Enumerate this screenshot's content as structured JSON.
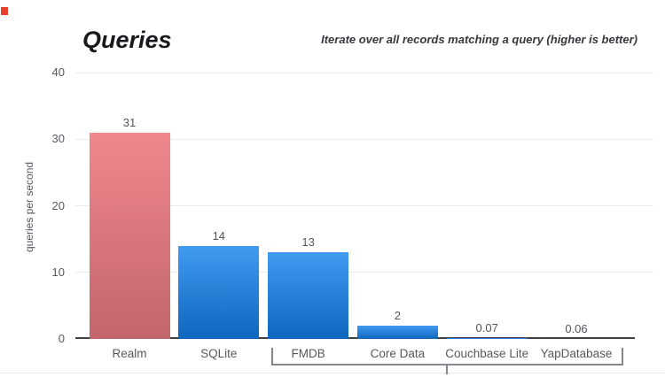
{
  "header": {
    "title": "Queries",
    "subtitle": "Iterate over all records matching a query (higher is better)"
  },
  "chart_data": {
    "type": "bar",
    "title": "Queries",
    "subtitle": "Iterate over all records matching a query (higher is better)",
    "xlabel": "",
    "ylabel": "queries per second",
    "ylim": [
      0,
      40
    ],
    "yticks": [
      0,
      10,
      20,
      30,
      40
    ],
    "grid": true,
    "legend": "none",
    "categories": [
      "Realm",
      "SQLite",
      "FMDB",
      "Core Data",
      "Couchbase Lite",
      "YapDatabase"
    ],
    "values": [
      31,
      14,
      13,
      2,
      0.07,
      0.06
    ],
    "value_labels": [
      "31",
      "14",
      "13",
      "2",
      "0.07",
      "0.06"
    ],
    "highlight_category": "Realm",
    "group_bracket": {
      "from": "FMDB",
      "to": "YapDatabase",
      "from_index": 2,
      "to_index": 5
    }
  },
  "colors": {
    "marker": "#e8402c",
    "highlight_bar_top": "#ef878d",
    "highlight_bar_bottom": "#c2656d",
    "bar_top": "#419bf1",
    "bar_bottom": "#0e66bd",
    "axis_line": "#3f4145",
    "gridline": "#ececec",
    "tick_text": "#56595e",
    "value_text": "#515459",
    "bracket": "#84878d"
  }
}
